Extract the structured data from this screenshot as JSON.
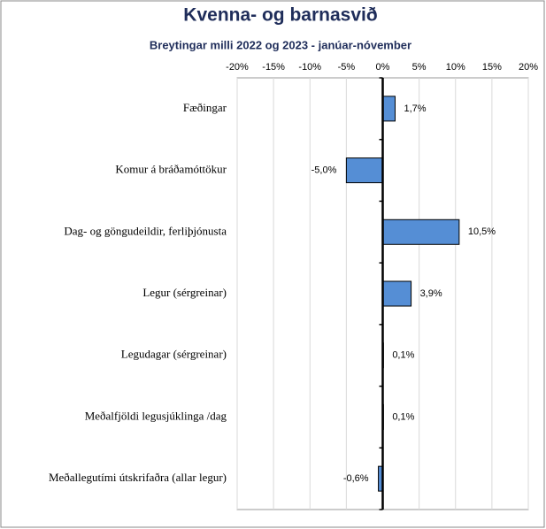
{
  "chart_data": {
    "type": "bar",
    "orientation": "horizontal",
    "title": "Kvenna- og barnasvið",
    "subtitle": "Breytingar milli 2022 og 2023 - janúar-nóvember",
    "categories": [
      "Fæðingar",
      "Komur á bráðamóttökur",
      "Dag- og göngudeildir, ferliþjónusta",
      "Legur (sérgreinar)",
      "Legudagar (sérgreinar)",
      "Meðalfjöldi legusjúklinga /dag",
      "Meðallegutími útskrifaðra (allar legur)"
    ],
    "values": [
      1.7,
      -5.0,
      10.5,
      3.9,
      0.1,
      0.1,
      -0.6
    ],
    "value_labels": [
      "1,7%",
      "-5,0%",
      "10,5%",
      "3,9%",
      "0,1%",
      "0,1%",
      "-0,6%"
    ],
    "color": "#558ed5",
    "xlim": [
      -20,
      20
    ],
    "xticks": [
      {
        "value": -20,
        "label": "-20%"
      },
      {
        "value": -15,
        "label": "-15%"
      },
      {
        "value": -10,
        "label": "-10%"
      },
      {
        "value": -5,
        "label": "-5%"
      },
      {
        "value": 0,
        "label": "0%"
      },
      {
        "value": 5,
        "label": "5%"
      },
      {
        "value": 10,
        "label": "10%"
      },
      {
        "value": 15,
        "label": "15%"
      },
      {
        "value": 20,
        "label": "20%"
      }
    ],
    "grid": true
  }
}
